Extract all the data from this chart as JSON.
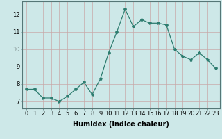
{
  "x": [
    0,
    1,
    2,
    3,
    4,
    5,
    6,
    7,
    8,
    9,
    10,
    11,
    12,
    13,
    14,
    15,
    16,
    17,
    18,
    19,
    20,
    21,
    22,
    23
  ],
  "y": [
    7.7,
    7.7,
    7.2,
    7.2,
    7.0,
    7.3,
    7.7,
    8.1,
    7.4,
    8.3,
    9.8,
    11.0,
    12.3,
    11.3,
    11.7,
    11.5,
    11.5,
    11.4,
    10.0,
    9.6,
    9.4,
    9.8,
    9.4,
    8.9
  ],
  "line_color": "#2e7d70",
  "marker": "*",
  "marker_size": 3,
  "bg_color": "#cde8e8",
  "grid_color_v": "#c8a8a8",
  "grid_color_h": "#c8a8a8",
  "xlabel": "Humidex (Indice chaleur)",
  "xlabel_fontsize": 7,
  "tick_fontsize": 6,
  "yticks": [
    7,
    8,
    9,
    10,
    11,
    12
  ],
  "ylim": [
    6.6,
    12.75
  ],
  "xlim": [
    -0.5,
    23.5
  ]
}
